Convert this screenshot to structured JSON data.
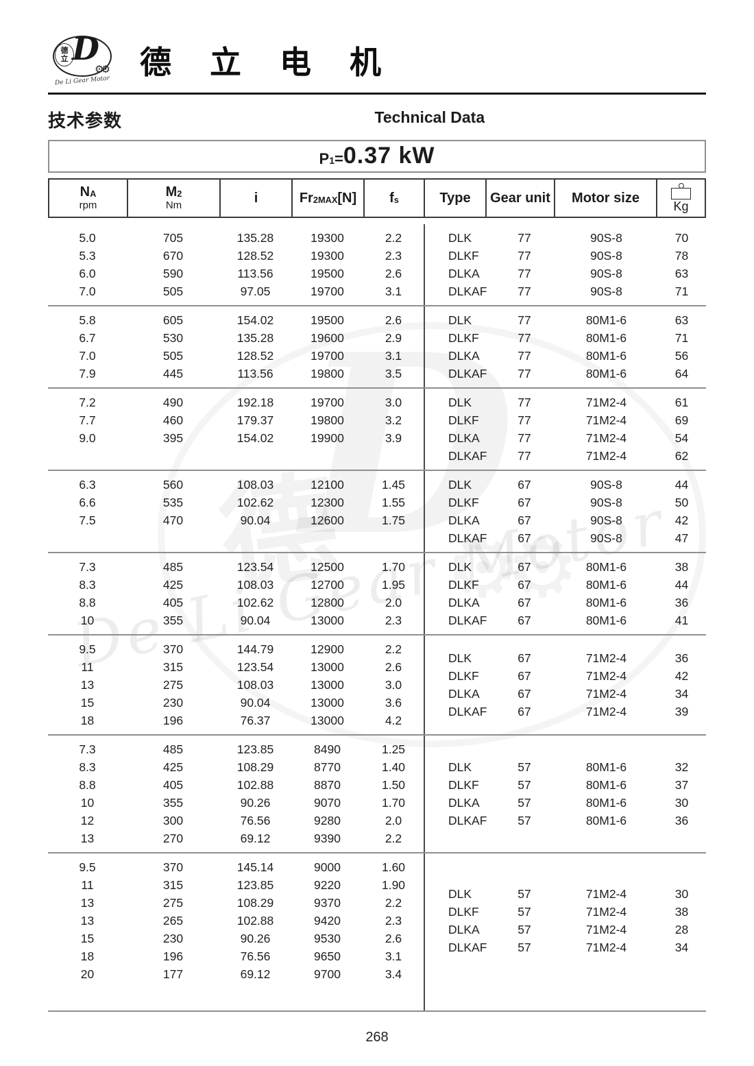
{
  "header": {
    "brand": "德 立 电 机",
    "logo": {
      "cn_top": "德",
      "cn_bottom": "立",
      "letter": "D",
      "gears": "⚙⚙",
      "subtext": "De Li Gear Motor"
    },
    "section_title_cn": "技术参数",
    "section_title_en": "Technical Data"
  },
  "power": {
    "symbol": "P",
    "symbol_sub": "1",
    "equals": "=",
    "value": "0.37 kW"
  },
  "table": {
    "headers": [
      {
        "name": "header-na",
        "main": "N",
        "sub": "A",
        "unit": "rpm"
      },
      {
        "name": "header-m2",
        "main": "M",
        "sub": "2",
        "unit": "Nm"
      },
      {
        "name": "header-i",
        "main": "i"
      },
      {
        "name": "header-fr2max",
        "main": "Fr",
        "sub": "2MAX",
        "suffix": "[N]"
      },
      {
        "name": "header-fs",
        "main": "f",
        "sub": "s"
      },
      {
        "name": "header-type",
        "main": "Type"
      },
      {
        "name": "header-gear-unit",
        "main": "Gear unit"
      },
      {
        "name": "header-motor-size",
        "main": "Motor size"
      },
      {
        "name": "header-kg",
        "main": "Kg",
        "icon": "weight-icon"
      }
    ],
    "blocks": [
      {
        "left": [
          [
            "5.0",
            "705",
            "135.28",
            "19300",
            "2.2"
          ],
          [
            "5.3",
            "670",
            "128.52",
            "19300",
            "2.3"
          ],
          [
            "6.0",
            "590",
            "113.56",
            "19500",
            "2.6"
          ],
          [
            "7.0",
            "505",
            "97.05",
            "19700",
            "3.1"
          ]
        ],
        "right": [
          [
            "DLK",
            "77",
            "90S-8",
            "70"
          ],
          [
            "DLKF",
            "77",
            "90S-8",
            "78"
          ],
          [
            "DLKA",
            "77",
            "90S-8",
            "63"
          ],
          [
            "DLKAF",
            "77",
            "90S-8",
            "71"
          ]
        ]
      },
      {
        "left": [
          [
            "5.8",
            "605",
            "154.02",
            "19500",
            "2.6"
          ],
          [
            "6.7",
            "530",
            "135.28",
            "19600",
            "2.9"
          ],
          [
            "7.0",
            "505",
            "128.52",
            "19700",
            "3.1"
          ],
          [
            "7.9",
            "445",
            "113.56",
            "19800",
            "3.5"
          ]
        ],
        "right": [
          [
            "DLK",
            "77",
            "80M1-6",
            "63"
          ],
          [
            "DLKF",
            "77",
            "80M1-6",
            "71"
          ],
          [
            "DLKA",
            "77",
            "80M1-6",
            "56"
          ],
          [
            "DLKAF",
            "77",
            "80M1-6",
            "64"
          ]
        ]
      },
      {
        "left": [
          [
            "7.2",
            "490",
            "192.18",
            "19700",
            "3.0"
          ],
          [
            "7.7",
            "460",
            "179.37",
            "19800",
            "3.2"
          ],
          [
            "9.0",
            "395",
            "154.02",
            "19900",
            "3.9"
          ]
        ],
        "right": [
          [
            "DLK",
            "77",
            "71M2-4",
            "61"
          ],
          [
            "DLKF",
            "77",
            "71M2-4",
            "69"
          ],
          [
            "DLKA",
            "77",
            "71M2-4",
            "54"
          ],
          [
            "DLKAF",
            "77",
            "71M2-4",
            "62"
          ]
        ]
      },
      {
        "left": [
          [
            "6.3",
            "560",
            "108.03",
            "12100",
            "1.45"
          ],
          [
            "6.6",
            "535",
            "102.62",
            "12300",
            "1.55"
          ],
          [
            "7.5",
            "470",
            "90.04",
            "12600",
            "1.75"
          ]
        ],
        "right": [
          [
            "DLK",
            "67",
            "90S-8",
            "44"
          ],
          [
            "DLKF",
            "67",
            "90S-8",
            "50"
          ],
          [
            "DLKA",
            "67",
            "90S-8",
            "42"
          ],
          [
            "DLKAF",
            "67",
            "90S-8",
            "47"
          ]
        ]
      },
      {
        "left": [
          [
            "7.3",
            "485",
            "123.54",
            "12500",
            "1.70"
          ],
          [
            "8.3",
            "425",
            "108.03",
            "12700",
            "1.95"
          ],
          [
            "8.8",
            "405",
            "102.62",
            "12800",
            "2.0"
          ],
          [
            "10",
            "355",
            "90.04",
            "13000",
            "2.3"
          ]
        ],
        "right": [
          [
            "DLK",
            "67",
            "80M1-6",
            "38"
          ],
          [
            "DLKF",
            "67",
            "80M1-6",
            "44"
          ],
          [
            "DLKA",
            "67",
            "80M1-6",
            "36"
          ],
          [
            "DLKAF",
            "67",
            "80M1-6",
            "41"
          ]
        ]
      },
      {
        "left": [
          [
            "9.5",
            "370",
            "144.79",
            "12900",
            "2.2"
          ],
          [
            "11",
            "315",
            "123.54",
            "13000",
            "2.6"
          ],
          [
            "13",
            "275",
            "108.03",
            "13000",
            "3.0"
          ],
          [
            "15",
            "230",
            "90.04",
            "13000",
            "3.6"
          ],
          [
            "18",
            "196",
            "76.37",
            "13000",
            "4.2"
          ]
        ],
        "right": [
          [
            "DLK",
            "67",
            "71M2-4",
            "36"
          ],
          [
            "DLKF",
            "67",
            "71M2-4",
            "42"
          ],
          [
            "DLKA",
            "67",
            "71M2-4",
            "34"
          ],
          [
            "DLKAF",
            "67",
            "71M2-4",
            "39"
          ]
        ]
      },
      {
        "left": [
          [
            "7.3",
            "485",
            "123.85",
            "8490",
            "1.25"
          ],
          [
            "8.3",
            "425",
            "108.29",
            "8770",
            "1.40"
          ],
          [
            "8.8",
            "405",
            "102.88",
            "8870",
            "1.50"
          ],
          [
            "10",
            "355",
            "90.26",
            "9070",
            "1.70"
          ],
          [
            "12",
            "300",
            "76.56",
            "9280",
            "2.0"
          ],
          [
            "13",
            "270",
            "69.12",
            "9390",
            "2.2"
          ]
        ],
        "right": [
          [
            "DLK",
            "57",
            "80M1-6",
            "32"
          ],
          [
            "DLKF",
            "57",
            "80M1-6",
            "37"
          ],
          [
            "DLKA",
            "57",
            "80M1-6",
            "30"
          ],
          [
            "DLKAF",
            "57",
            "80M1-6",
            "36"
          ]
        ]
      },
      {
        "left": [
          [
            "9.5",
            "370",
            "145.14",
            "9000",
            "1.60"
          ],
          [
            "11",
            "315",
            "123.85",
            "9220",
            "1.90"
          ],
          [
            "13",
            "275",
            "108.29",
            "9370",
            "2.2"
          ],
          [
            "13",
            "265",
            "102.88",
            "9420",
            "2.3"
          ],
          [
            "15",
            "230",
            "90.26",
            "9530",
            "2.6"
          ],
          [
            "18",
            "196",
            "76.56",
            "9650",
            "3.1"
          ],
          [
            "20",
            "177",
            "69.12",
            "9700",
            "3.4"
          ]
        ],
        "right": [
          [
            "DLK",
            "57",
            "71M2-4",
            "30"
          ],
          [
            "DLKF",
            "57",
            "71M2-4",
            "38"
          ],
          [
            "DLKA",
            "57",
            "71M2-4",
            "28"
          ],
          [
            "DLKAF",
            "57",
            "71M2-4",
            "34"
          ]
        ]
      }
    ]
  },
  "watermark": {
    "text": "De Li Gear Motor",
    "letter": "D",
    "cn": "德",
    "gears": "⚙⚙"
  },
  "footer": {
    "page_number": "268"
  }
}
